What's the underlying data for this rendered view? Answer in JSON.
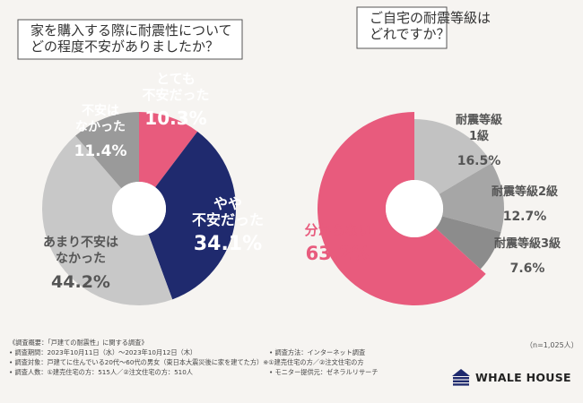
{
  "chart_data": [
    {
      "type": "pie",
      "title": "家を購入する際に耐震性について\nどの程度不安がありましたか？",
      "categories": [
        "とても\n不安だった",
        "やや\n不安だった",
        "あまり不安は\nなかった",
        "不安は\nなかった"
      ],
      "values": [
        10.3,
        34.1,
        44.2,
        11.4
      ],
      "value_labels": [
        "10.3%",
        "34.1%",
        "44.2%",
        "11.4%"
      ],
      "colors": [
        "#e85b7d",
        "#1f2a6e",
        "#c8c8c8",
        "#9a9a9a"
      ],
      "label_colors": [
        "#ffffff",
        "#ffffff",
        "#555555",
        "#ffffff"
      ]
    },
    {
      "type": "pie",
      "title": "ご自宅の耐震等級は\nどれですか？",
      "categories": [
        "耐震等級\n1級",
        "耐震等級2級",
        "耐震等級3級",
        "分からない"
      ],
      "values": [
        16.5,
        12.7,
        7.6,
        63.2
      ],
      "value_labels": [
        "16.5%",
        "12.7%",
        "7.6%",
        "63.2%"
      ],
      "colors": [
        "#c2c2c2",
        "#a6a6a6",
        "#8c8c8c",
        "#e85b7d"
      ],
      "label_colors": [
        "#555555",
        "#555555",
        "#555555",
        "#e85b7d"
      ]
    }
  ],
  "sample_note": "（n=1,025人）",
  "survey": {
    "overview": "《調査概要：「戸建ての耐震性」に関する調査》",
    "period": "• 調査期間：2023年10月11日（水）～2023年10月12日（木）",
    "method": "• 調査方法：インターネット調査",
    "target": "• 調査対象：戸建てに住んでいる20代～60代の男女（東日本大震災後に家を建てた方）※①建売住宅の方／②注文住宅の方",
    "count": "• 調査人数：①建売住宅の方：515人／②注文住宅の方：510人",
    "provider": "• モニター提供元：ゼネラルリサーチ"
  },
  "brand": {
    "name": "WHALE HOUSE"
  }
}
